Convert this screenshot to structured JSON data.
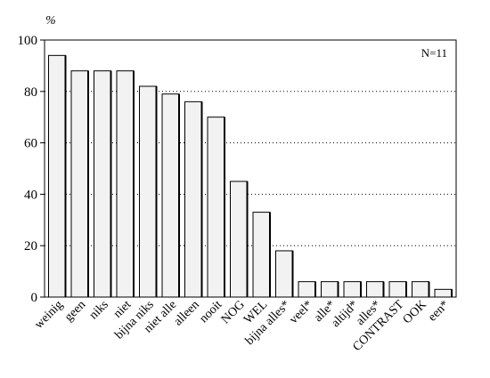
{
  "chart_data": {
    "type": "bar",
    "unit_label": "%",
    "annotation": "N=11",
    "ylim": [
      0,
      100
    ],
    "yticks": [
      0,
      20,
      40,
      60,
      80,
      100
    ],
    "grid": "horizontal-dotted",
    "categories": [
      "weinig",
      "geen",
      "niks",
      "niet",
      "bijna niks",
      "niet alle",
      "alleen",
      "nooit",
      "NOG",
      "WEL",
      "bijna alles*",
      "veel*",
      "alle*",
      "altijd*",
      "alles*",
      "CONTRAST",
      "OOK",
      "een*"
    ],
    "values": [
      94,
      88,
      88,
      88,
      82,
      79,
      76,
      70,
      45,
      33,
      18,
      6,
      6,
      6,
      6,
      6,
      6,
      3
    ],
    "bar_color": "#f2f2f2"
  }
}
